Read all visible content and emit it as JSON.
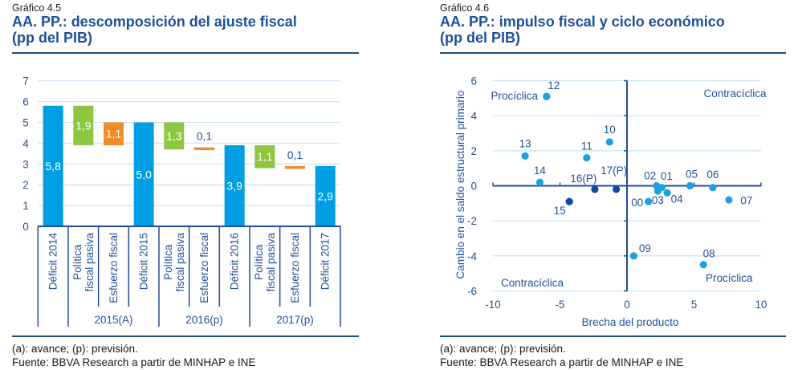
{
  "left_panel": {
    "figure_number": "Gráfico 4.5",
    "title_line1": "AA. PP.: descomposición del ajuste fiscal",
    "title_line2": "(pp del PIB)",
    "note": "(a): avance; (p): previsión.",
    "source": "Fuente: BBVA Research a partir de MINHAP e INE"
  },
  "right_panel": {
    "figure_number": "Gráfico 4.6",
    "title_line1": "AA. PP.: impulso fiscal y ciclo económico",
    "title_line2": "(pp del PIB)",
    "note": "(a): avance; (p): previsión.",
    "source": "Fuente: BBVA Research a partir de MINHAP e INE"
  },
  "chart_data": [
    {
      "type": "bar",
      "subtype": "waterfall",
      "title": "AA. PP.: descomposición del ajuste fiscal (pp del PIB)",
      "xlabel": "",
      "ylabel": "",
      "ylim": [
        0,
        7
      ],
      "yticks": [
        0,
        1,
        2,
        3,
        4,
        5,
        6,
        7
      ],
      "grid": true,
      "colors": {
        "deficit": "#009fe3",
        "passive": "#8dc63f",
        "effort": "#f28c28"
      },
      "categories": [
        {
          "lines": [
            "Déficit 2014"
          ]
        },
        {
          "lines": [
            "Política",
            "fiscal pasiva"
          ]
        },
        {
          "lines": [
            "Esfuerzo fiscal"
          ]
        },
        {
          "lines": [
            "Déficit 2015"
          ]
        },
        {
          "lines": [
            "Política",
            "fiscal pasiva"
          ]
        },
        {
          "lines": [
            "Esfuerzo fiscal"
          ]
        },
        {
          "lines": [
            "Déficit 2016"
          ]
        },
        {
          "lines": [
            "Política",
            "fiscal pasiva"
          ]
        },
        {
          "lines": [
            "Esfuerzo fiscal"
          ]
        },
        {
          "lines": [
            "Déficit 2017"
          ]
        }
      ],
      "groups": [
        {
          "label": "2015(A)",
          "first": 1,
          "last": 3
        },
        {
          "label": "2016(p)",
          "first": 4,
          "last": 6
        },
        {
          "label": "2017(p)",
          "first": 7,
          "last": 9
        }
      ],
      "bars": [
        {
          "kind": "deficit",
          "from": 0,
          "to": 5.8,
          "label": "5,8"
        },
        {
          "kind": "passive",
          "from": 5.8,
          "to": 3.9,
          "label": "1,9"
        },
        {
          "kind": "effort",
          "from": 3.9,
          "to": 5.0,
          "label": "1,1"
        },
        {
          "kind": "deficit",
          "from": 0,
          "to": 5.0,
          "label": "5,0"
        },
        {
          "kind": "passive",
          "from": 5.0,
          "to": 3.7,
          "label": "1,3"
        },
        {
          "kind": "effort",
          "from": 3.7,
          "to": 3.8,
          "label": "0,1"
        },
        {
          "kind": "deficit",
          "from": 0,
          "to": 3.9,
          "label": "3,9"
        },
        {
          "kind": "passive",
          "from": 3.9,
          "to": 2.8,
          "label": "1,1"
        },
        {
          "kind": "effort",
          "from": 2.8,
          "to": 2.9,
          "label": "0,1"
        },
        {
          "kind": "deficit",
          "from": 0,
          "to": 2.9,
          "label": "2,9"
        }
      ]
    },
    {
      "type": "scatter",
      "title": "AA. PP.: impulso fiscal y ciclo económico (pp del PIB)",
      "xlabel": "Brecha del producto",
      "ylabel": "Cambio en el saldo estructural primario",
      "xlim": [
        -10,
        10
      ],
      "ylim": [
        -6,
        6
      ],
      "xticks": [
        -10,
        -5,
        0,
        5,
        10
      ],
      "yticks": [
        6,
        4,
        2,
        0,
        -2,
        -4,
        -6
      ],
      "grid": true,
      "series": [
        {
          "name": "",
          "color": "#1ba1e2",
          "points": [
            {
              "label": "00",
              "x": 1.6,
              "y": -0.9
            },
            {
              "label": "01",
              "x": 2.6,
              "y": -0.1
            },
            {
              "label": "02",
              "x": 2.2,
              "y": 0.0
            },
            {
              "label": "03",
              "x": 2.3,
              "y": -0.3
            },
            {
              "label": "04",
              "x": 3.0,
              "y": -0.4
            },
            {
              "label": "05",
              "x": 4.7,
              "y": 0.0
            },
            {
              "label": "06",
              "x": 6.4,
              "y": -0.1
            },
            {
              "label": "07",
              "x": 7.6,
              "y": -0.8
            },
            {
              "label": "08",
              "x": 5.7,
              "y": -4.5
            },
            {
              "label": "09",
              "x": 0.5,
              "y": -4.0
            },
            {
              "label": "10",
              "x": -1.3,
              "y": 2.5
            },
            {
              "label": "11",
              "x": -3.0,
              "y": 1.6
            },
            {
              "label": "12",
              "x": -6.0,
              "y": 5.1
            },
            {
              "label": "13",
              "x": -7.6,
              "y": 1.7
            },
            {
              "label": "14",
              "x": -6.5,
              "y": 0.2
            }
          ]
        },
        {
          "name": "",
          "color": "#0d4a9e",
          "points": [
            {
              "label": "15",
              "x": -4.3,
              "y": -0.9
            },
            {
              "label": "16(P)",
              "x": -2.4,
              "y": -0.2
            },
            {
              "label": "17(P)",
              "x": -0.8,
              "y": -0.2
            }
          ]
        }
      ],
      "quadrant_labels": [
        {
          "text": "Procíclica",
          "position": "top-left"
        },
        {
          "text": "Contracíclica",
          "position": "top-right"
        },
        {
          "text": "Contracíclica",
          "position": "bottom-left"
        },
        {
          "text": "Procíclica",
          "position": "bottom-right"
        }
      ]
    }
  ]
}
